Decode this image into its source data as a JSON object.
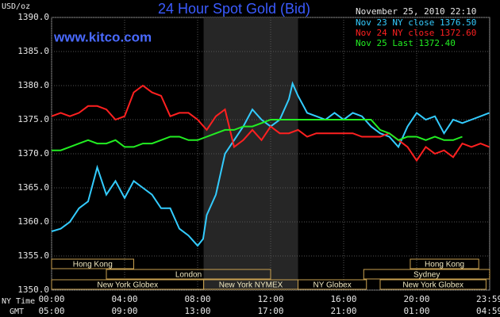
{
  "chart_data": {
    "type": "line",
    "title": "24 Hour Spot Gold (Bid)",
    "website": "www.kitco.com",
    "timestamp": "November 25, 2010 22:10",
    "y_label": "USD/oz",
    "x_label": "NY Time",
    "x2_label": "GMT",
    "xlim": [
      0,
      24
    ],
    "ylim": [
      1350,
      1390
    ],
    "xticks": [
      {
        "value": 0,
        "label": "00:00"
      },
      {
        "value": 4,
        "label": "04:00"
      },
      {
        "value": 8,
        "label": "08:00"
      },
      {
        "value": 12,
        "label": "12:00"
      },
      {
        "value": 16,
        "label": "16:00"
      },
      {
        "value": 20,
        "label": "20:00"
      },
      {
        "value": 23.98,
        "label": "23:59"
      }
    ],
    "x2ticks": [
      {
        "value": 0,
        "label": "05:00"
      },
      {
        "value": 4,
        "label": "09:00"
      },
      {
        "value": 8,
        "label": "13:00"
      },
      {
        "value": 12,
        "label": "17:00"
      },
      {
        "value": 16,
        "label": "21:00"
      },
      {
        "value": 20,
        "label": "01:00"
      },
      {
        "value": 23.98,
        "label": "04:59"
      }
    ],
    "yticks": [
      {
        "value": 1350,
        "label": "1350.0"
      },
      {
        "value": 1355,
        "label": "1355.0"
      },
      {
        "value": 1360,
        "label": "1360.0"
      },
      {
        "value": 1365,
        "label": "1365.0"
      },
      {
        "value": 1370,
        "label": "1370.0"
      },
      {
        "value": 1375,
        "label": "1375.0"
      },
      {
        "value": 1380,
        "label": "1380.0"
      },
      {
        "value": 1385,
        "label": "1385.0"
      },
      {
        "value": 1390,
        "label": "1390.0"
      }
    ],
    "grid": true,
    "session_rows": [
      [
        {
          "label": "Hong Kong",
          "start": 0,
          "end": 4.5
        },
        {
          "label": "Hong Kong",
          "start": 19.65,
          "end": 23.4
        }
      ],
      [
        {
          "label": "London",
          "start": 3,
          "end": 12
        },
        {
          "label": "Sydney",
          "start": 17.1,
          "end": 24
        }
      ],
      [
        {
          "label": "New York Globex",
          "start": 0,
          "end": 8.33
        },
        {
          "label": "New York NYMEX",
          "start": 8.33,
          "end": 13.5
        },
        {
          "label": "NY Globex",
          "start": 13.5,
          "end": 17.25
        },
        {
          "label": "New York Globex",
          "start": 18,
          "end": 23.8
        }
      ]
    ],
    "highlight_session": "New York NYMEX",
    "series": [
      {
        "name": "Nov 23 NY close 1376.50",
        "color": "#33ccff",
        "x": [
          0,
          0.5,
          1,
          1.5,
          2,
          2.5,
          3,
          3.5,
          4,
          4.5,
          5,
          5.5,
          6,
          6.5,
          7,
          7.5,
          8,
          8.3,
          8.5,
          9,
          9.5,
          10,
          10.5,
          11,
          11.5,
          12,
          12.5,
          13,
          13.2,
          13.5,
          14,
          14.5,
          15,
          15.5,
          16,
          16.5,
          17,
          17.5,
          18,
          18.5,
          19,
          19.5,
          20,
          20.5,
          21,
          21.5,
          22,
          22.5,
          23,
          23.5,
          23.98
        ],
        "values": [
          1358.6,
          1359,
          1360,
          1362,
          1363,
          1368,
          1364,
          1366,
          1363.5,
          1366,
          1365,
          1364,
          1362,
          1362,
          1359,
          1358,
          1356.5,
          1357.5,
          1361,
          1364,
          1370,
          1372,
          1374,
          1376.5,
          1375,
          1374,
          1375,
          1378,
          1380.3,
          1378.5,
          1376,
          1375.5,
          1375,
          1376,
          1375,
          1376,
          1375.5,
          1374,
          1373,
          1372.5,
          1371,
          1374,
          1376,
          1375,
          1375.5,
          1373,
          1375,
          1374.5,
          1375,
          1375.5,
          1376
        ]
      },
      {
        "name": "Nov 24 NY close 1372.60",
        "color": "#ff2020",
        "x": [
          0,
          0.5,
          1,
          1.5,
          2,
          2.5,
          3,
          3.5,
          4,
          4.5,
          5,
          5.5,
          6,
          6.5,
          7,
          7.5,
          8,
          8.5,
          9,
          9.5,
          10,
          10.5,
          11,
          11.5,
          12,
          12.5,
          13,
          13.5,
          14,
          14.5,
          15,
          15.5,
          16,
          16.5,
          17,
          17.5,
          18,
          18.5,
          19,
          19.5,
          20,
          20.5,
          21,
          21.5,
          22,
          22.5,
          23,
          23.5,
          23.98
        ],
        "values": [
          1375.5,
          1376,
          1375.5,
          1376,
          1377,
          1377,
          1376.5,
          1375,
          1375.5,
          1379,
          1380,
          1379,
          1378.5,
          1375.5,
          1376,
          1376,
          1375,
          1373.5,
          1375.5,
          1376.5,
          1371,
          1372,
          1373.5,
          1372,
          1374,
          1373,
          1373,
          1373.5,
          1372.5,
          1373,
          1373,
          1373,
          1373,
          1373,
          1372.5,
          1372.5,
          1372.5,
          1373,
          1372,
          1371,
          1369,
          1371,
          1370,
          1370.5,
          1369.5,
          1371.5,
          1371,
          1371.5,
          1371
        ]
      },
      {
        "name": "Nov 25 Last 1372.40",
        "color": "#22ee22",
        "x": [
          0,
          0.5,
          1,
          1.5,
          2,
          2.5,
          3,
          3.5,
          4,
          4.5,
          5,
          5.5,
          6,
          6.5,
          7,
          7.5,
          8,
          8.5,
          9,
          9.5,
          10,
          10.5,
          11,
          11.5,
          12,
          12.5,
          13,
          13.5,
          17,
          17.5,
          18,
          18.5,
          19,
          19.5,
          20,
          20.5,
          21,
          21.5,
          22,
          22.5
        ],
        "values": [
          1370.5,
          1370.5,
          1371,
          1371.5,
          1372,
          1371.5,
          1371.5,
          1372,
          1371,
          1371,
          1371.5,
          1371.5,
          1372,
          1372.5,
          1372.5,
          1372,
          1372,
          1372.5,
          1373,
          1373.5,
          1373.5,
          1374,
          1374,
          1374.5,
          1375,
          1375,
          1375,
          1375,
          1375,
          1375,
          1373.5,
          1373,
          1372,
          1372.5,
          1372.5,
          1372,
          1372.5,
          1372,
          1372,
          1372.5
        ]
      }
    ]
  }
}
